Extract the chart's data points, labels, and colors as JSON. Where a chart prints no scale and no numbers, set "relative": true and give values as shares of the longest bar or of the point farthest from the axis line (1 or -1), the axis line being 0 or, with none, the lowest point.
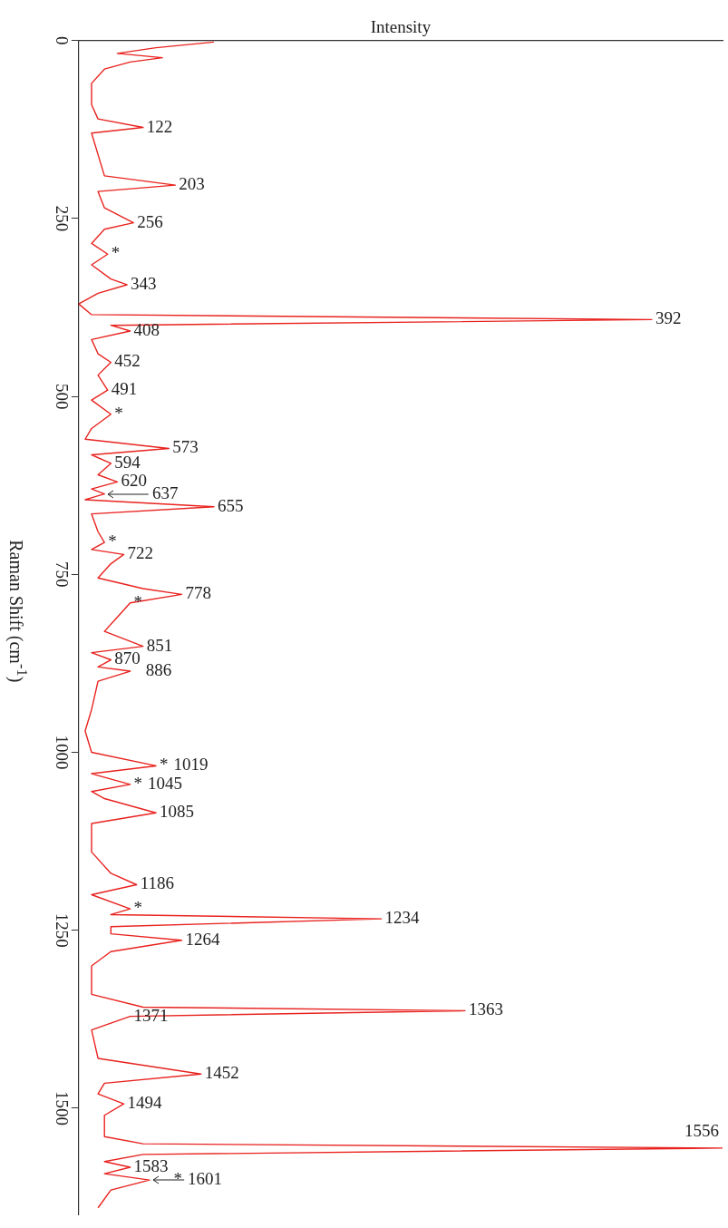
{
  "chart_data": {
    "type": "line",
    "orientation": "horizontal",
    "relative": true,
    "xlabel": "Intensity",
    "ylabel": "Raman Shift (cm$^{-1}$)",
    "ylim": [
      1650,
      0
    ],
    "yticks": [
      0,
      250,
      500,
      750,
      1000,
      1250,
      1500
    ],
    "grid": false,
    "marker": "none",
    "x": [
      2,
      10,
      18,
      24,
      30,
      40,
      60,
      90,
      110,
      122,
      130,
      160,
      190,
      203,
      212,
      235,
      256,
      265,
      285,
      300,
      315,
      335,
      343,
      355,
      370,
      385,
      392,
      400,
      408,
      420,
      440,
      452,
      470,
      491,
      505,
      525,
      545,
      560,
      573,
      582,
      594,
      610,
      620,
      630,
      637,
      645,
      655,
      665,
      690,
      705,
      715,
      722,
      735,
      755,
      770,
      778,
      790,
      810,
      830,
      851,
      860,
      870,
      880,
      886,
      900,
      940,
      970,
      1000,
      1019,
      1030,
      1045,
      1055,
      1065,
      1085,
      1100,
      1140,
      1170,
      1186,
      1200,
      1220,
      1228,
      1234,
      1245,
      1255,
      1264,
      1280,
      1300,
      1340,
      1358,
      1363,
      1371,
      1390,
      1430,
      1452,
      1465,
      1480,
      1494,
      1510,
      1540,
      1550,
      1556,
      1565,
      1575,
      1583,
      1592,
      1601,
      1615,
      1640
    ],
    "series": [
      {
        "color": "#e8231f",
        "values": [
          0.21,
          0.12,
          0.06,
          0.13,
          0.08,
          0.04,
          0.02,
          0.02,
          0.03,
          0.1,
          0.02,
          0.03,
          0.04,
          0.15,
          0.03,
          0.04,
          0.085,
          0.04,
          0.02,
          0.045,
          0.02,
          0.05,
          0.075,
          0.03,
          0.0,
          0.02,
          0.89,
          0.05,
          0.08,
          0.02,
          0.03,
          0.05,
          0.03,
          0.045,
          0.02,
          0.05,
          0.02,
          0.01,
          0.14,
          0.02,
          0.05,
          0.03,
          0.06,
          0.02,
          0.04,
          0.01,
          0.21,
          0.02,
          0.03,
          0.04,
          0.02,
          0.07,
          0.05,
          0.03,
          0.1,
          0.16,
          0.08,
          0.06,
          0.04,
          0.1,
          0.02,
          0.05,
          0.03,
          0.08,
          0.03,
          0.02,
          0.01,
          0.02,
          0.12,
          0.02,
          0.08,
          0.02,
          0.04,
          0.12,
          0.02,
          0.02,
          0.05,
          0.09,
          0.02,
          0.08,
          0.05,
          0.47,
          0.05,
          0.05,
          0.16,
          0.05,
          0.02,
          0.02,
          0.1,
          0.6,
          0.08,
          0.02,
          0.03,
          0.19,
          0.04,
          0.03,
          0.07,
          0.04,
          0.04,
          0.1,
          1.0,
          0.1,
          0.04,
          0.08,
          0.04,
          0.11,
          0.05,
          0.03
        ]
      }
    ],
    "annotations": [
      {
        "text": "122",
        "x": 0.1,
        "y": 122
      },
      {
        "text": "203",
        "x": 0.15,
        "y": 203
      },
      {
        "text": "256",
        "x": 0.085,
        "y": 256
      },
      {
        "text": "*",
        "x": 0.045,
        "y": 300
      },
      {
        "text": "343",
        "x": 0.075,
        "y": 343
      },
      {
        "text": "392",
        "x": 0.89,
        "y": 392
      },
      {
        "text": "408",
        "x": 0.08,
        "y": 408
      },
      {
        "text": "452",
        "x": 0.05,
        "y": 452
      },
      {
        "text": "491",
        "x": 0.045,
        "y": 491
      },
      {
        "text": "*",
        "x": 0.05,
        "y": 525
      },
      {
        "text": "573",
        "x": 0.14,
        "y": 573
      },
      {
        "text": "594",
        "x": 0.05,
        "y": 594
      },
      {
        "text": "620",
        "x": 0.06,
        "y": 620
      },
      {
        "text": "637",
        "x": 0.04,
        "y": 637
      },
      {
        "text": "655",
        "x": 0.21,
        "y": 655
      },
      {
        "text": "*",
        "x": 0.04,
        "y": 705
      },
      {
        "text": "722",
        "x": 0.07,
        "y": 722
      },
      {
        "text": "778",
        "x": 0.16,
        "y": 778
      },
      {
        "text": "*",
        "x": 0.08,
        "y": 790
      },
      {
        "text": "851",
        "x": 0.1,
        "y": 851
      },
      {
        "text": "870",
        "x": 0.05,
        "y": 870
      },
      {
        "text": "886",
        "x": 0.08,
        "y": 886
      },
      {
        "text": "*",
        "x": 0.12,
        "y": 1019
      },
      {
        "text": "1019",
        "x": 0.12,
        "y": 1019
      },
      {
        "text": "*",
        "x": 0.08,
        "y": 1045
      },
      {
        "text": "1045",
        "x": 0.08,
        "y": 1045
      },
      {
        "text": "1085",
        "x": 0.12,
        "y": 1085
      },
      {
        "text": "1186",
        "x": 0.09,
        "y": 1186
      },
      {
        "text": "*",
        "x": 0.08,
        "y": 1220
      },
      {
        "text": "1234",
        "x": 0.47,
        "y": 1234
      },
      {
        "text": "1264",
        "x": 0.16,
        "y": 1264
      },
      {
        "text": "1363",
        "x": 0.6,
        "y": 1363
      },
      {
        "text": "1371",
        "x": 0.08,
        "y": 1371
      },
      {
        "text": "1452",
        "x": 0.19,
        "y": 1452
      },
      {
        "text": "1494",
        "x": 0.07,
        "y": 1494
      },
      {
        "text": "1556",
        "x": 1.0,
        "y": 1556
      },
      {
        "text": "1583",
        "x": 0.08,
        "y": 1583
      },
      {
        "text": "*",
        "x": 0.11,
        "y": 1601
      },
      {
        "text": "1601",
        "x": 0.11,
        "y": 1601
      }
    ]
  }
}
